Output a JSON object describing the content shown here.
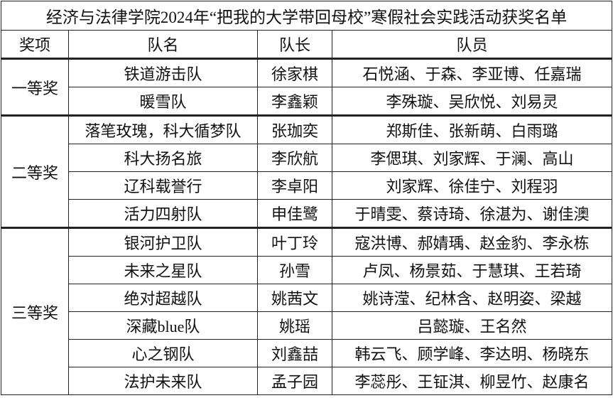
{
  "title": "经济与法律学院2024年“把我的大学带回母校”寒假社会实践活动获奖名单",
  "headers": {
    "award": "奖项",
    "team": "队名",
    "leader": "队长",
    "members": "队员"
  },
  "groups": [
    {
      "award": "一等奖",
      "rows": [
        {
          "team": "铁道游击队",
          "leader": "徐家棋",
          "members": "石悦涵、于森、李亚博、任嘉瑞"
        },
        {
          "team": "暖雪队",
          "leader": "李鑫颖",
          "members": "李殊璇、吴欣悦、刘易灵"
        }
      ]
    },
    {
      "award": "二等奖",
      "rows": [
        {
          "team": "落笔玫瑰，科大循梦队",
          "leader": "张珈奕",
          "members": "郑斯佳、张新萌、白雨璐"
        },
        {
          "team": "科大扬名旅",
          "leader": "李欣航",
          "members": "李偲琪、刘家辉、于澜、高山"
        },
        {
          "team": "辽科载誉行",
          "leader": "李卓阳",
          "members": "刘家辉、徐佳宁、刘程羽"
        },
        {
          "team": "活力四射队",
          "leader": "申佳鹭",
          "members": "于晴雯、蔡诗琦、徐湛为、谢佳澳"
        }
      ]
    },
    {
      "award": "三等奖",
      "rows": [
        {
          "team": "银河护卫队",
          "leader": "叶丁玲",
          "members": "寇洪博、郝婧瑀、赵金豹、李永栋"
        },
        {
          "team": "未来之星队",
          "leader": "孙雪",
          "members": "卢凤、杨景茹、于慧琪、王若琦"
        },
        {
          "team": "绝对超越队",
          "leader": "姚茜文",
          "members": "姚诗滢、纪林含、赵明姿、梁越"
        },
        {
          "team": "深藏blue队",
          "leader": "姚瑶",
          "members": "吕懿璇、王名然"
        },
        {
          "team": "心之钢队",
          "leader": "刘鑫喆",
          "members": "韩云飞、顾学峰、李达明、杨晓东"
        },
        {
          "team": "法护未来队",
          "leader": "孟子园",
          "members": "李蕊彤、王钲淇、柳昱竹、赵康名"
        }
      ]
    }
  ]
}
